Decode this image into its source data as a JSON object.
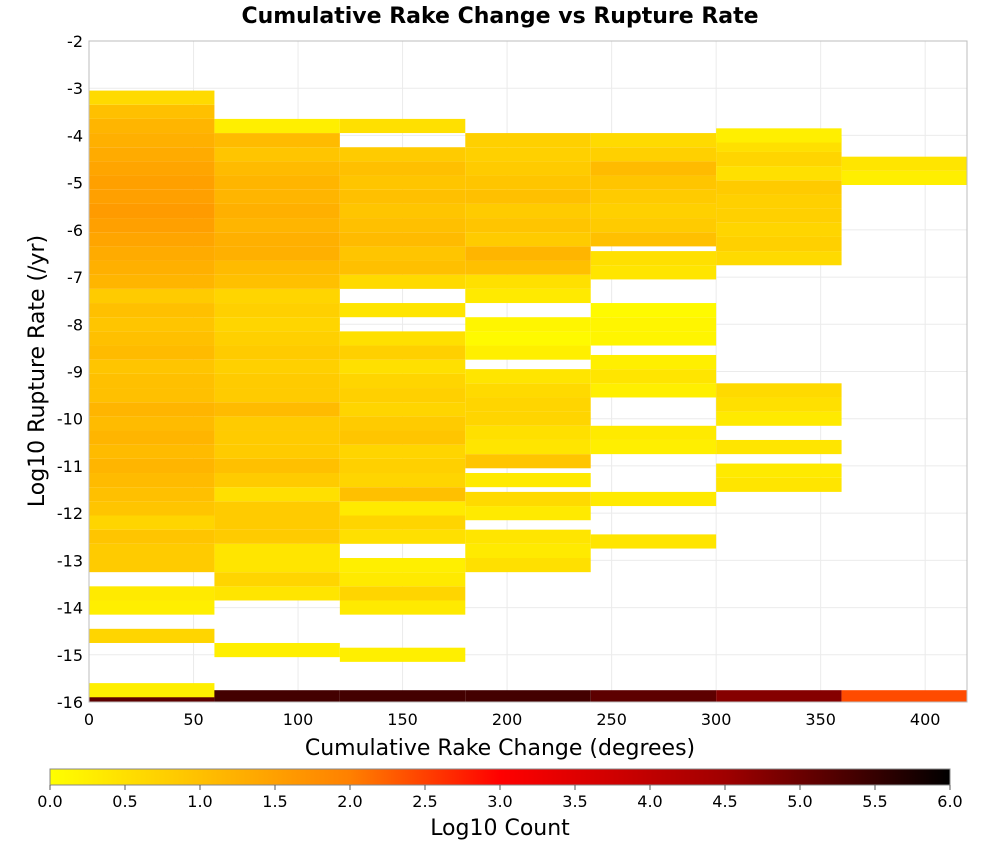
{
  "chart_data": {
    "type": "heatmap",
    "title": "Cumulative Rake Change vs Rupture Rate",
    "xlabel": "Cumulative Rake Change (degrees)",
    "ylabel": "Log10 Rupture Rate (/yr)",
    "xlim": [
      0,
      420
    ],
    "ylim": [
      -16,
      -2
    ],
    "x_ticks": [
      "0",
      "50",
      "100",
      "150",
      "200",
      "250",
      "300",
      "350",
      "400"
    ],
    "y_ticks": [
      "-16",
      "-15",
      "-14",
      "-13",
      "-12",
      "-11",
      "-10",
      "-9",
      "-8",
      "-7",
      "-6",
      "-5",
      "-4",
      "-3",
      "-2"
    ],
    "grid": true,
    "x_bin_edges": [
      0,
      60,
      120,
      180,
      240,
      300,
      360,
      420
    ],
    "y_bin_width": 0.3,
    "colorbar": {
      "label": "Log10 Count",
      "range": [
        0,
        6
      ],
      "ticks": [
        "0.0",
        "0.5",
        "1.0",
        "1.5",
        "2.0",
        "2.5",
        "3.0",
        "3.5",
        "4.0",
        "4.5",
        "5.0",
        "5.5",
        "6.0"
      ],
      "colormap": [
        "#ffff00",
        "#ffc000",
        "#ff8000",
        "#ff0000",
        "#a00000",
        "#000000"
      ]
    },
    "columns": [
      {
        "x_range": [
          0,
          60
        ],
        "cells": [
          {
            "y": -15.9,
            "log10_count": 5.3
          },
          {
            "y": -15.75,
            "log10_count": 0.3
          },
          {
            "y": -14.6,
            "log10_count": 0.8
          },
          {
            "y": -14.0,
            "log10_count": 0.3
          },
          {
            "y": -13.7,
            "log10_count": 0.4
          },
          {
            "y": -13.1,
            "log10_count": 1.0
          },
          {
            "y": -12.8,
            "log10_count": 1.0
          },
          {
            "y": -12.5,
            "log10_count": 1.1
          },
          {
            "y": -12.2,
            "log10_count": 0.8
          },
          {
            "y": -11.9,
            "log10_count": 1.1
          },
          {
            "y": -11.6,
            "log10_count": 1.2
          },
          {
            "y": -11.3,
            "log10_count": 1.3
          },
          {
            "y": -11.0,
            "log10_count": 1.4
          },
          {
            "y": -10.7,
            "log10_count": 1.3
          },
          {
            "y": -10.4,
            "log10_count": 1.4
          },
          {
            "y": -10.1,
            "log10_count": 1.3
          },
          {
            "y": -9.8,
            "log10_count": 1.4
          },
          {
            "y": -9.5,
            "log10_count": 1.2
          },
          {
            "y": -9.2,
            "log10_count": 1.2
          },
          {
            "y": -8.9,
            "log10_count": 1.1
          },
          {
            "y": -8.6,
            "log10_count": 1.3
          },
          {
            "y": -8.3,
            "log10_count": 1.2
          },
          {
            "y": -8.0,
            "log10_count": 1.1
          },
          {
            "y": -7.7,
            "log10_count": 1.2
          },
          {
            "y": -7.4,
            "log10_count": 1.0
          },
          {
            "y": -7.1,
            "log10_count": 1.4
          },
          {
            "y": -6.8,
            "log10_count": 1.5
          },
          {
            "y": -6.5,
            "log10_count": 1.6
          },
          {
            "y": -6.2,
            "log10_count": 1.7
          },
          {
            "y": -5.9,
            "log10_count": 1.8
          },
          {
            "y": -5.6,
            "log10_count": 1.9
          },
          {
            "y": -5.3,
            "log10_count": 1.8
          },
          {
            "y": -5.0,
            "log10_count": 1.8
          },
          {
            "y": -4.7,
            "log10_count": 1.7
          },
          {
            "y": -4.4,
            "log10_count": 1.6
          },
          {
            "y": -4.1,
            "log10_count": 1.5
          },
          {
            "y": -3.8,
            "log10_count": 1.4
          },
          {
            "y": -3.5,
            "log10_count": 1.2
          },
          {
            "y": -3.2,
            "log10_count": 0.7
          }
        ]
      },
      {
        "x_range": [
          60,
          120
        ],
        "cells": [
          {
            "y": -15.9,
            "log10_count": 5.5
          },
          {
            "y": -14.9,
            "log10_count": 0.3
          },
          {
            "y": -13.7,
            "log10_count": 0.5
          },
          {
            "y": -13.4,
            "log10_count": 0.8
          },
          {
            "y": -13.1,
            "log10_count": 0.5
          },
          {
            "y": -12.8,
            "log10_count": 0.5
          },
          {
            "y": -12.5,
            "log10_count": 1.0
          },
          {
            "y": -12.2,
            "log10_count": 1.0
          },
          {
            "y": -11.9,
            "log10_count": 1.0
          },
          {
            "y": -11.6,
            "log10_count": 0.6
          },
          {
            "y": -11.3,
            "log10_count": 1.0
          },
          {
            "y": -11.0,
            "log10_count": 1.2
          },
          {
            "y": -10.7,
            "log10_count": 1.0
          },
          {
            "y": -10.4,
            "log10_count": 1.0
          },
          {
            "y": -10.1,
            "log10_count": 1.0
          },
          {
            "y": -9.8,
            "log10_count": 1.3
          },
          {
            "y": -9.5,
            "log10_count": 1.0
          },
          {
            "y": -9.2,
            "log10_count": 1.0
          },
          {
            "y": -8.9,
            "log10_count": 0.9
          },
          {
            "y": -8.6,
            "log10_count": 1.0
          },
          {
            "y": -8.3,
            "log10_count": 0.9
          },
          {
            "y": -8.0,
            "log10_count": 0.8
          },
          {
            "y": -7.7,
            "log10_count": 0.9
          },
          {
            "y": -7.4,
            "log10_count": 0.8
          },
          {
            "y": -7.1,
            "log10_count": 1.2
          },
          {
            "y": -6.8,
            "log10_count": 1.3
          },
          {
            "y": -6.5,
            "log10_count": 1.5
          },
          {
            "y": -6.2,
            "log10_count": 1.5
          },
          {
            "y": -5.9,
            "log10_count": 1.4
          },
          {
            "y": -5.6,
            "log10_count": 1.5
          },
          {
            "y": -5.3,
            "log10_count": 1.4
          },
          {
            "y": -5.0,
            "log10_count": 1.4
          },
          {
            "y": -4.7,
            "log10_count": 1.3
          },
          {
            "y": -4.4,
            "log10_count": 1.1
          },
          {
            "y": -4.1,
            "log10_count": 1.3
          },
          {
            "y": -3.8,
            "log10_count": 0.3
          }
        ]
      },
      {
        "x_range": [
          120,
          180
        ],
        "cells": [
          {
            "y": -15.9,
            "log10_count": 5.5
          },
          {
            "y": -15.0,
            "log10_count": 0.3
          },
          {
            "y": -14.0,
            "log10_count": 0.4
          },
          {
            "y": -13.7,
            "log10_count": 0.8
          },
          {
            "y": -13.4,
            "log10_count": 0.4
          },
          {
            "y": -13.1,
            "log10_count": 0.3
          },
          {
            "y": -12.5,
            "log10_count": 0.6
          },
          {
            "y": -12.2,
            "log10_count": 0.8
          },
          {
            "y": -11.9,
            "log10_count": 0.4
          },
          {
            "y": -11.6,
            "log10_count": 1.2
          },
          {
            "y": -11.3,
            "log10_count": 0.8
          },
          {
            "y": -11.0,
            "log10_count": 0.9
          },
          {
            "y": -10.7,
            "log10_count": 0.8
          },
          {
            "y": -10.4,
            "log10_count": 1.1
          },
          {
            "y": -10.1,
            "log10_count": 1.0
          },
          {
            "y": -9.8,
            "log10_count": 0.8
          },
          {
            "y": -9.5,
            "log10_count": 0.9
          },
          {
            "y": -9.2,
            "log10_count": 0.8
          },
          {
            "y": -8.9,
            "log10_count": 0.6
          },
          {
            "y": -8.6,
            "log10_count": 0.9
          },
          {
            "y": -8.3,
            "log10_count": 0.6
          },
          {
            "y": -7.7,
            "log10_count": 0.5
          },
          {
            "y": -7.1,
            "log10_count": 0.7
          },
          {
            "y": -6.8,
            "log10_count": 1.2
          },
          {
            "y": -6.5,
            "log10_count": 1.1
          },
          {
            "y": -6.2,
            "log10_count": 1.3
          },
          {
            "y": -5.9,
            "log10_count": 1.2
          },
          {
            "y": -5.6,
            "log10_count": 1.1
          },
          {
            "y": -5.3,
            "log10_count": 1.2
          },
          {
            "y": -5.0,
            "log10_count": 1.1
          },
          {
            "y": -4.7,
            "log10_count": 1.2
          },
          {
            "y": -4.4,
            "log10_count": 1.0
          },
          {
            "y": -3.8,
            "log10_count": 0.6
          }
        ]
      },
      {
        "x_range": [
          180,
          240
        ],
        "cells": [
          {
            "y": -15.9,
            "log10_count": 5.5
          },
          {
            "y": -13.1,
            "log10_count": 0.6
          },
          {
            "y": -12.8,
            "log10_count": 0.4
          },
          {
            "y": -12.5,
            "log10_count": 0.5
          },
          {
            "y": -12.0,
            "log10_count": 0.4
          },
          {
            "y": -11.7,
            "log10_count": 0.7
          },
          {
            "y": -11.3,
            "log10_count": 0.4
          },
          {
            "y": -10.9,
            "log10_count": 1.1
          },
          {
            "y": -10.6,
            "log10_count": 0.5
          },
          {
            "y": -10.3,
            "log10_count": 0.6
          },
          {
            "y": -10.0,
            "log10_count": 0.8
          },
          {
            "y": -9.7,
            "log10_count": 0.8
          },
          {
            "y": -9.4,
            "log10_count": 0.7
          },
          {
            "y": -9.1,
            "log10_count": 0.5
          },
          {
            "y": -8.6,
            "log10_count": 0.3
          },
          {
            "y": -8.3,
            "log10_count": 0.1
          },
          {
            "y": -8.0,
            "log10_count": 0.2
          },
          {
            "y": -7.4,
            "log10_count": 0.4
          },
          {
            "y": -7.1,
            "log10_count": 0.6
          },
          {
            "y": -6.8,
            "log10_count": 1.2
          },
          {
            "y": -6.5,
            "log10_count": 1.4
          },
          {
            "y": -6.2,
            "log10_count": 1.0
          },
          {
            "y": -5.9,
            "log10_count": 1.1
          },
          {
            "y": -5.6,
            "log10_count": 1.0
          },
          {
            "y": -5.3,
            "log10_count": 1.2
          },
          {
            "y": -5.0,
            "log10_count": 1.1
          },
          {
            "y": -4.7,
            "log10_count": 1.0
          },
          {
            "y": -4.4,
            "log10_count": 0.9
          },
          {
            "y": -4.1,
            "log10_count": 0.9
          }
        ]
      },
      {
        "x_range": [
          240,
          300
        ],
        "cells": [
          {
            "y": -15.9,
            "log10_count": 5.3
          },
          {
            "y": -12.6,
            "log10_count": 0.5
          },
          {
            "y": -11.7,
            "log10_count": 0.4
          },
          {
            "y": -10.6,
            "log10_count": 0.3
          },
          {
            "y": -10.3,
            "log10_count": 0.4
          },
          {
            "y": -9.4,
            "log10_count": 0.3
          },
          {
            "y": -9.1,
            "log10_count": 0.5
          },
          {
            "y": -8.8,
            "log10_count": 0.3
          },
          {
            "y": -8.3,
            "log10_count": 0.2
          },
          {
            "y": -8.0,
            "log10_count": 0.2
          },
          {
            "y": -7.7,
            "log10_count": 0.1
          },
          {
            "y": -6.9,
            "log10_count": 0.5
          },
          {
            "y": -6.6,
            "log10_count": 0.6
          },
          {
            "y": -6.2,
            "log10_count": 1.2
          },
          {
            "y": -5.9,
            "log10_count": 1.0
          },
          {
            "y": -5.6,
            "log10_count": 0.9
          },
          {
            "y": -5.3,
            "log10_count": 1.0
          },
          {
            "y": -5.0,
            "log10_count": 1.1
          },
          {
            "y": -4.7,
            "log10_count": 1.3
          },
          {
            "y": -4.4,
            "log10_count": 0.9
          },
          {
            "y": -4.1,
            "log10_count": 0.7
          }
        ]
      },
      {
        "x_range": [
          300,
          360
        ],
        "cells": [
          {
            "y": -15.9,
            "log10_count": 5.0
          },
          {
            "y": -11.4,
            "log10_count": 0.5
          },
          {
            "y": -11.1,
            "log10_count": 0.4
          },
          {
            "y": -10.6,
            "log10_count": 0.5
          },
          {
            "y": -10.0,
            "log10_count": 0.4
          },
          {
            "y": -9.7,
            "log10_count": 0.6
          },
          {
            "y": -9.4,
            "log10_count": 0.7
          },
          {
            "y": -6.6,
            "log10_count": 0.7
          },
          {
            "y": -6.3,
            "log10_count": 0.9
          },
          {
            "y": -6.0,
            "log10_count": 0.8
          },
          {
            "y": -5.7,
            "log10_count": 0.9
          },
          {
            "y": -5.4,
            "log10_count": 0.9
          },
          {
            "y": -5.1,
            "log10_count": 1.0
          },
          {
            "y": -4.8,
            "log10_count": 0.6
          },
          {
            "y": -4.5,
            "log10_count": 0.8
          },
          {
            "y": -4.2,
            "log10_count": 0.6
          },
          {
            "y": -4.0,
            "log10_count": 0.3
          }
        ]
      },
      {
        "x_range": [
          360,
          420
        ],
        "cells": [
          {
            "y": -15.9,
            "log10_count": 2.9
          },
          {
            "y": -4.9,
            "log10_count": 0.3
          },
          {
            "y": -4.6,
            "log10_count": 0.5
          }
        ]
      }
    ]
  }
}
